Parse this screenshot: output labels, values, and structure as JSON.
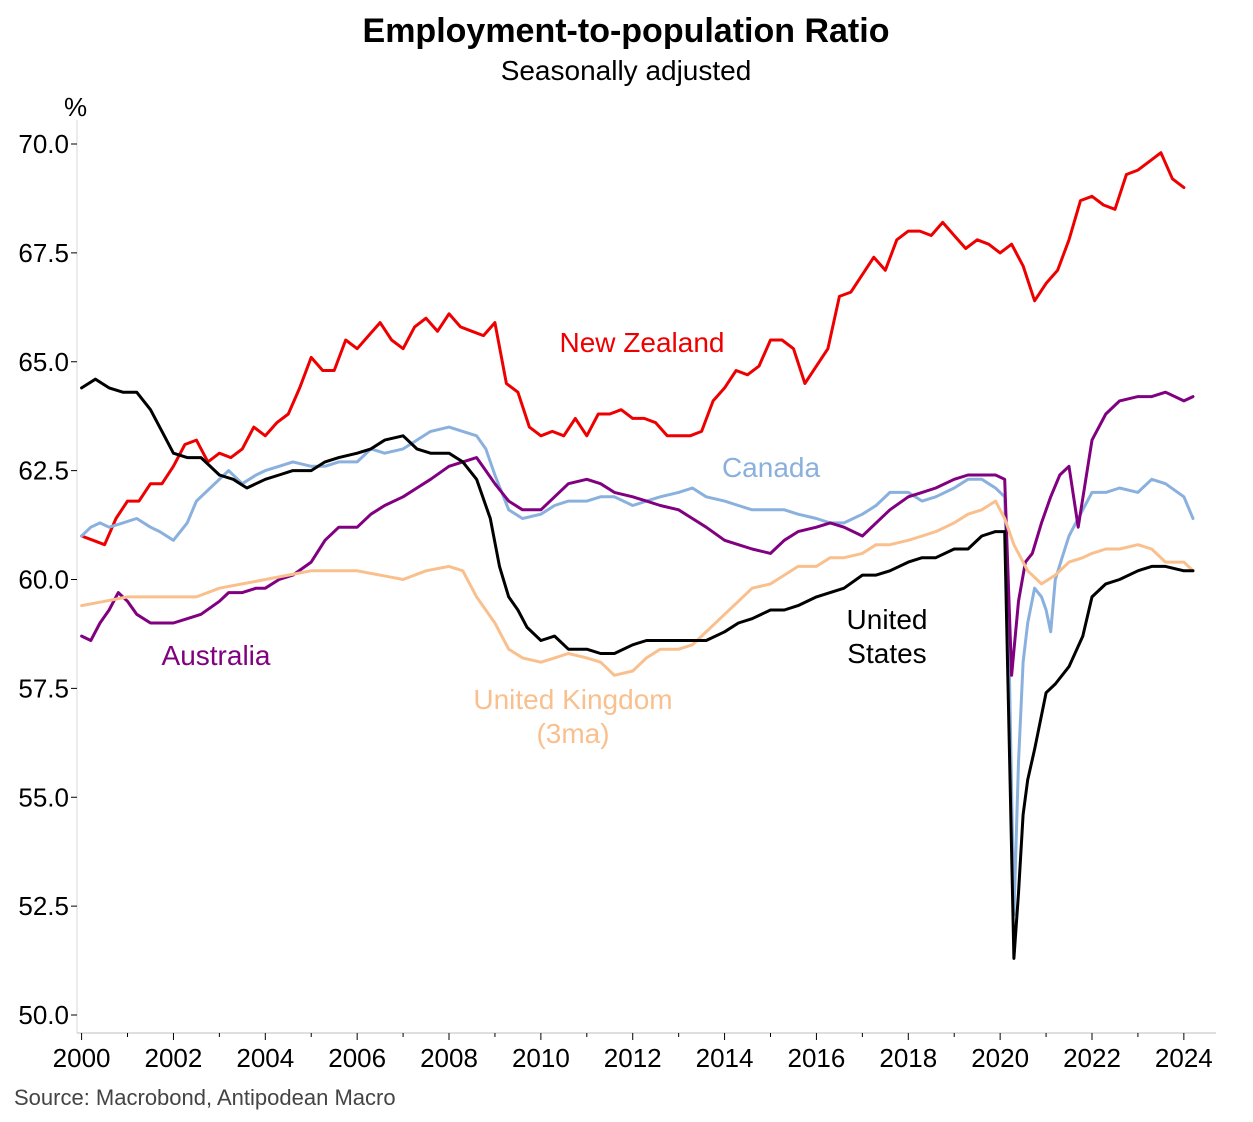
{
  "chart_data": {
    "type": "line",
    "title": "Employment-to-population Ratio",
    "subtitle": "Seasonally adjusted",
    "ylabel": "%",
    "source": "Source: Macrobond, Antipodean Macro",
    "xlim": [
      1999.9,
      2024.7
    ],
    "ylim": [
      50.0,
      70.0
    ],
    "y_ticks": [
      "70.0",
      "67.5",
      "65.0",
      "62.5",
      "60.0",
      "57.5",
      "55.0",
      "52.5",
      "50.0"
    ],
    "x_ticks": [
      "2000",
      "2002",
      "2004",
      "2006",
      "2008",
      "2010",
      "2012",
      "2014",
      "2016",
      "2018",
      "2020",
      "2022",
      "2024"
    ],
    "series": [
      {
        "name": "New Zealand",
        "label_lines": [
          "New Zealand"
        ],
        "color": "#ee0000",
        "x": [
          2000.0,
          2000.25,
          2000.5,
          2000.75,
          2001.0,
          2001.25,
          2001.5,
          2001.75,
          2002.0,
          2002.25,
          2002.5,
          2002.75,
          2003.0,
          2003.25,
          2003.5,
          2003.75,
          2004.0,
          2004.25,
          2004.5,
          2004.75,
          2005.0,
          2005.25,
          2005.5,
          2005.75,
          2006.0,
          2006.25,
          2006.5,
          2006.75,
          2007.0,
          2007.25,
          2007.5,
          2007.75,
          2008.0,
          2008.25,
          2008.5,
          2008.75,
          2009.0,
          2009.25,
          2009.5,
          2009.75,
          2010.0,
          2010.25,
          2010.5,
          2010.75,
          2011.0,
          2011.25,
          2011.5,
          2011.75,
          2012.0,
          2012.25,
          2012.5,
          2012.75,
          2013.0,
          2013.25,
          2013.5,
          2013.75,
          2014.0,
          2014.25,
          2014.5,
          2014.75,
          2015.0,
          2015.25,
          2015.5,
          2015.75,
          2016.0,
          2016.25,
          2016.5,
          2016.75,
          2017.0,
          2017.25,
          2017.5,
          2017.75,
          2018.0,
          2018.25,
          2018.5,
          2018.75,
          2019.0,
          2019.25,
          2019.5,
          2019.75,
          2020.0,
          2020.25,
          2020.5,
          2020.75,
          2021.0,
          2021.25,
          2021.5,
          2021.75,
          2022.0,
          2022.25,
          2022.5,
          2022.75,
          2023.0,
          2023.25,
          2023.5,
          2023.75,
          2024.0
        ],
        "values": [
          61.0,
          60.9,
          60.8,
          61.4,
          61.8,
          61.8,
          62.2,
          62.2,
          62.6,
          63.1,
          63.2,
          62.7,
          62.9,
          62.8,
          63.0,
          63.5,
          63.3,
          63.6,
          63.8,
          64.4,
          65.1,
          64.8,
          64.8,
          65.5,
          65.3,
          65.6,
          65.9,
          65.5,
          65.3,
          65.8,
          66.0,
          65.7,
          66.1,
          65.8,
          65.7,
          65.6,
          65.9,
          64.5,
          64.3,
          63.5,
          63.3,
          63.4,
          63.3,
          63.7,
          63.3,
          63.8,
          63.8,
          63.9,
          63.7,
          63.7,
          63.6,
          63.3,
          63.3,
          63.3,
          63.4,
          64.1,
          64.4,
          64.8,
          64.7,
          64.9,
          65.5,
          65.5,
          65.3,
          64.5,
          64.9,
          65.3,
          66.5,
          66.6,
          67.0,
          67.4,
          67.1,
          67.8,
          68.0,
          68.0,
          67.9,
          68.2,
          67.9,
          67.6,
          67.8,
          67.7,
          67.5,
          67.7,
          67.2,
          66.4,
          66.8,
          67.1,
          67.8,
          68.7,
          68.8,
          68.6,
          68.5,
          69.3,
          69.4,
          69.6,
          69.8,
          69.2,
          69.0
        ]
      },
      {
        "name": "Canada",
        "label_lines": [
          "Canada"
        ],
        "color": "#8ab0de",
        "x": [
          2000.0,
          2000.2,
          2000.4,
          2000.6,
          2000.9,
          2001.2,
          2001.5,
          2001.7,
          2002.0,
          2002.3,
          2002.5,
          2002.7,
          2003.0,
          2003.2,
          2003.5,
          2003.8,
          2004.0,
          2004.3,
          2004.6,
          2005.0,
          2005.3,
          2005.6,
          2006.0,
          2006.3,
          2006.6,
          2007.0,
          2007.3,
          2007.6,
          2008.0,
          2008.3,
          2008.6,
          2008.8,
          2009.0,
          2009.3,
          2009.6,
          2010.0,
          2010.3,
          2010.6,
          2011.0,
          2011.3,
          2011.6,
          2012.0,
          2012.3,
          2012.6,
          2013.0,
          2013.3,
          2013.6,
          2014.0,
          2014.3,
          2014.6,
          2015.0,
          2015.3,
          2015.6,
          2016.0,
          2016.3,
          2016.6,
          2017.0,
          2017.3,
          2017.6,
          2018.0,
          2018.3,
          2018.6,
          2019.0,
          2019.3,
          2019.6,
          2019.9,
          2020.1,
          2020.2,
          2020.3,
          2020.4,
          2020.5,
          2020.6,
          2020.75,
          2020.9,
          2021.0,
          2021.1,
          2021.2,
          2021.35,
          2021.5,
          2021.6,
          2021.8,
          2022.0,
          2022.3,
          2022.6,
          2023.0,
          2023.3,
          2023.6,
          2024.0,
          2024.2
        ],
        "values": [
          61.0,
          61.2,
          61.3,
          61.2,
          61.3,
          61.4,
          61.2,
          61.1,
          60.9,
          61.3,
          61.8,
          62.0,
          62.3,
          62.5,
          62.2,
          62.4,
          62.5,
          62.6,
          62.7,
          62.6,
          62.6,
          62.7,
          62.7,
          63.0,
          62.9,
          63.0,
          63.2,
          63.4,
          63.5,
          63.4,
          63.3,
          63.0,
          62.4,
          61.6,
          61.4,
          61.5,
          61.7,
          61.8,
          61.8,
          61.9,
          61.9,
          61.7,
          61.8,
          61.9,
          62.0,
          62.1,
          61.9,
          61.8,
          61.7,
          61.6,
          61.6,
          61.6,
          61.5,
          61.4,
          61.3,
          61.3,
          61.5,
          61.7,
          62.0,
          62.0,
          61.8,
          61.9,
          62.1,
          62.3,
          62.3,
          62.1,
          61.9,
          58.0,
          52.3,
          55.8,
          58.1,
          59.0,
          59.8,
          59.6,
          59.3,
          58.8,
          60.0,
          60.5,
          61.0,
          61.2,
          61.6,
          62.0,
          62.0,
          62.1,
          62.0,
          62.3,
          62.2,
          61.9,
          61.4
        ]
      },
      {
        "name": "Australia",
        "label_lines": [
          "Australia"
        ],
        "color": "#800080",
        "x": [
          2000.0,
          2000.2,
          2000.4,
          2000.6,
          2000.8,
          2001.0,
          2001.2,
          2001.5,
          2001.8,
          2002.0,
          2002.3,
          2002.6,
          2003.0,
          2003.2,
          2003.5,
          2003.8,
          2004.0,
          2004.3,
          2004.6,
          2005.0,
          2005.3,
          2005.6,
          2006.0,
          2006.3,
          2006.6,
          2007.0,
          2007.3,
          2007.6,
          2008.0,
          2008.3,
          2008.6,
          2008.8,
          2009.0,
          2009.3,
          2009.6,
          2010.0,
          2010.3,
          2010.6,
          2011.0,
          2011.3,
          2011.6,
          2012.0,
          2012.3,
          2012.6,
          2013.0,
          2013.3,
          2013.6,
          2014.0,
          2014.3,
          2014.6,
          2015.0,
          2015.3,
          2015.6,
          2016.0,
          2016.3,
          2016.6,
          2017.0,
          2017.3,
          2017.6,
          2018.0,
          2018.3,
          2018.6,
          2019.0,
          2019.3,
          2019.6,
          2019.9,
          2020.1,
          2020.25,
          2020.4,
          2020.55,
          2020.7,
          2020.9,
          2021.1,
          2021.3,
          2021.5,
          2021.7,
          2021.85,
          2022.0,
          2022.3,
          2022.6,
          2023.0,
          2023.3,
          2023.6,
          2024.0,
          2024.2
        ],
        "values": [
          58.7,
          58.6,
          59.0,
          59.3,
          59.7,
          59.5,
          59.2,
          59.0,
          59.0,
          59.0,
          59.1,
          59.2,
          59.5,
          59.7,
          59.7,
          59.8,
          59.8,
          60.0,
          60.1,
          60.4,
          60.9,
          61.2,
          61.2,
          61.5,
          61.7,
          61.9,
          62.1,
          62.3,
          62.6,
          62.7,
          62.8,
          62.5,
          62.2,
          61.8,
          61.6,
          61.6,
          61.9,
          62.2,
          62.3,
          62.2,
          62.0,
          61.9,
          61.8,
          61.7,
          61.6,
          61.4,
          61.2,
          60.9,
          60.8,
          60.7,
          60.6,
          60.9,
          61.1,
          61.2,
          61.3,
          61.2,
          61.0,
          61.3,
          61.6,
          61.9,
          62.0,
          62.1,
          62.3,
          62.4,
          62.4,
          62.4,
          62.3,
          57.8,
          59.5,
          60.4,
          60.6,
          61.3,
          61.9,
          62.4,
          62.6,
          61.2,
          62.2,
          63.2,
          63.8,
          64.1,
          64.2,
          64.2,
          64.3,
          64.1,
          64.2
        ]
      },
      {
        "name": "United Kingdom (3ma)",
        "label_lines": [
          "United Kingdom",
          "(3ma)"
        ],
        "color": "#f9c08e",
        "x": [
          2000.0,
          2000.5,
          2001.0,
          2001.5,
          2002.0,
          2002.5,
          2003.0,
          2003.5,
          2004.0,
          2004.5,
          2005.0,
          2005.5,
          2006.0,
          2006.5,
          2007.0,
          2007.5,
          2008.0,
          2008.3,
          2008.6,
          2009.0,
          2009.3,
          2009.6,
          2010.0,
          2010.3,
          2010.6,
          2011.0,
          2011.3,
          2011.6,
          2012.0,
          2012.3,
          2012.6,
          2013.0,
          2013.3,
          2013.6,
          2014.0,
          2014.3,
          2014.6,
          2015.0,
          2015.3,
          2015.6,
          2016.0,
          2016.3,
          2016.6,
          2017.0,
          2017.3,
          2017.6,
          2018.0,
          2018.3,
          2018.6,
          2019.0,
          2019.3,
          2019.6,
          2019.9,
          2020.1,
          2020.3,
          2020.6,
          2020.9,
          2021.2,
          2021.5,
          2021.8,
          2022.0,
          2022.3,
          2022.6,
          2023.0,
          2023.3,
          2023.6,
          2024.0,
          2024.2
        ],
        "values": [
          59.4,
          59.5,
          59.6,
          59.6,
          59.6,
          59.6,
          59.8,
          59.9,
          60.0,
          60.1,
          60.2,
          60.2,
          60.2,
          60.1,
          60.0,
          60.2,
          60.3,
          60.2,
          59.6,
          59.0,
          58.4,
          58.2,
          58.1,
          58.2,
          58.3,
          58.2,
          58.1,
          57.8,
          57.9,
          58.2,
          58.4,
          58.4,
          58.5,
          58.8,
          59.2,
          59.5,
          59.8,
          59.9,
          60.1,
          60.3,
          60.3,
          60.5,
          60.5,
          60.6,
          60.8,
          60.8,
          60.9,
          61.0,
          61.1,
          61.3,
          61.5,
          61.6,
          61.8,
          61.4,
          60.8,
          60.2,
          59.9,
          60.1,
          60.4,
          60.5,
          60.6,
          60.7,
          60.7,
          60.8,
          60.7,
          60.4,
          60.4,
          60.2
        ]
      },
      {
        "name": "United States",
        "label_lines": [
          "United",
          "States"
        ],
        "color": "#000000",
        "x": [
          2000.0,
          2000.3,
          2000.6,
          2000.9,
          2001.2,
          2001.5,
          2001.8,
          2002.0,
          2002.3,
          2002.6,
          2003.0,
          2003.3,
          2003.6,
          2004.0,
          2004.3,
          2004.6,
          2005.0,
          2005.3,
          2005.6,
          2006.0,
          2006.3,
          2006.6,
          2007.0,
          2007.3,
          2007.6,
          2008.0,
          2008.3,
          2008.6,
          2008.9,
          2009.1,
          2009.3,
          2009.5,
          2009.7,
          2010.0,
          2010.3,
          2010.6,
          2011.0,
          2011.3,
          2011.6,
          2012.0,
          2012.3,
          2012.6,
          2013.0,
          2013.3,
          2013.6,
          2014.0,
          2014.3,
          2014.6,
          2015.0,
          2015.3,
          2015.6,
          2016.0,
          2016.3,
          2016.6,
          2017.0,
          2017.3,
          2017.6,
          2018.0,
          2018.3,
          2018.6,
          2019.0,
          2019.3,
          2019.6,
          2019.9,
          2020.1,
          2020.3,
          2020.4,
          2020.5,
          2020.6,
          2020.75,
          2021.0,
          2021.2,
          2021.5,
          2021.8,
          2022.0,
          2022.3,
          2022.6,
          2023.0,
          2023.3,
          2023.6,
          2024.0,
          2024.2
        ],
        "values": [
          64.4,
          64.6,
          64.4,
          64.3,
          64.3,
          63.9,
          63.3,
          62.9,
          62.8,
          62.8,
          62.4,
          62.3,
          62.1,
          62.3,
          62.4,
          62.5,
          62.5,
          62.7,
          62.8,
          62.9,
          63.0,
          63.2,
          63.3,
          63.0,
          62.9,
          62.9,
          62.7,
          62.3,
          61.4,
          60.3,
          59.6,
          59.3,
          58.9,
          58.6,
          58.7,
          58.4,
          58.4,
          58.3,
          58.3,
          58.5,
          58.6,
          58.6,
          58.6,
          58.6,
          58.6,
          58.8,
          59.0,
          59.1,
          59.3,
          59.3,
          59.4,
          59.6,
          59.7,
          59.8,
          60.1,
          60.1,
          60.2,
          60.4,
          60.5,
          60.5,
          60.7,
          60.7,
          61.0,
          61.1,
          61.1,
          51.3,
          52.8,
          54.6,
          55.4,
          56.1,
          57.4,
          57.6,
          58.0,
          58.7,
          59.6,
          59.9,
          60.0,
          60.2,
          60.3,
          60.3,
          60.2,
          60.2
        ]
      }
    ]
  }
}
